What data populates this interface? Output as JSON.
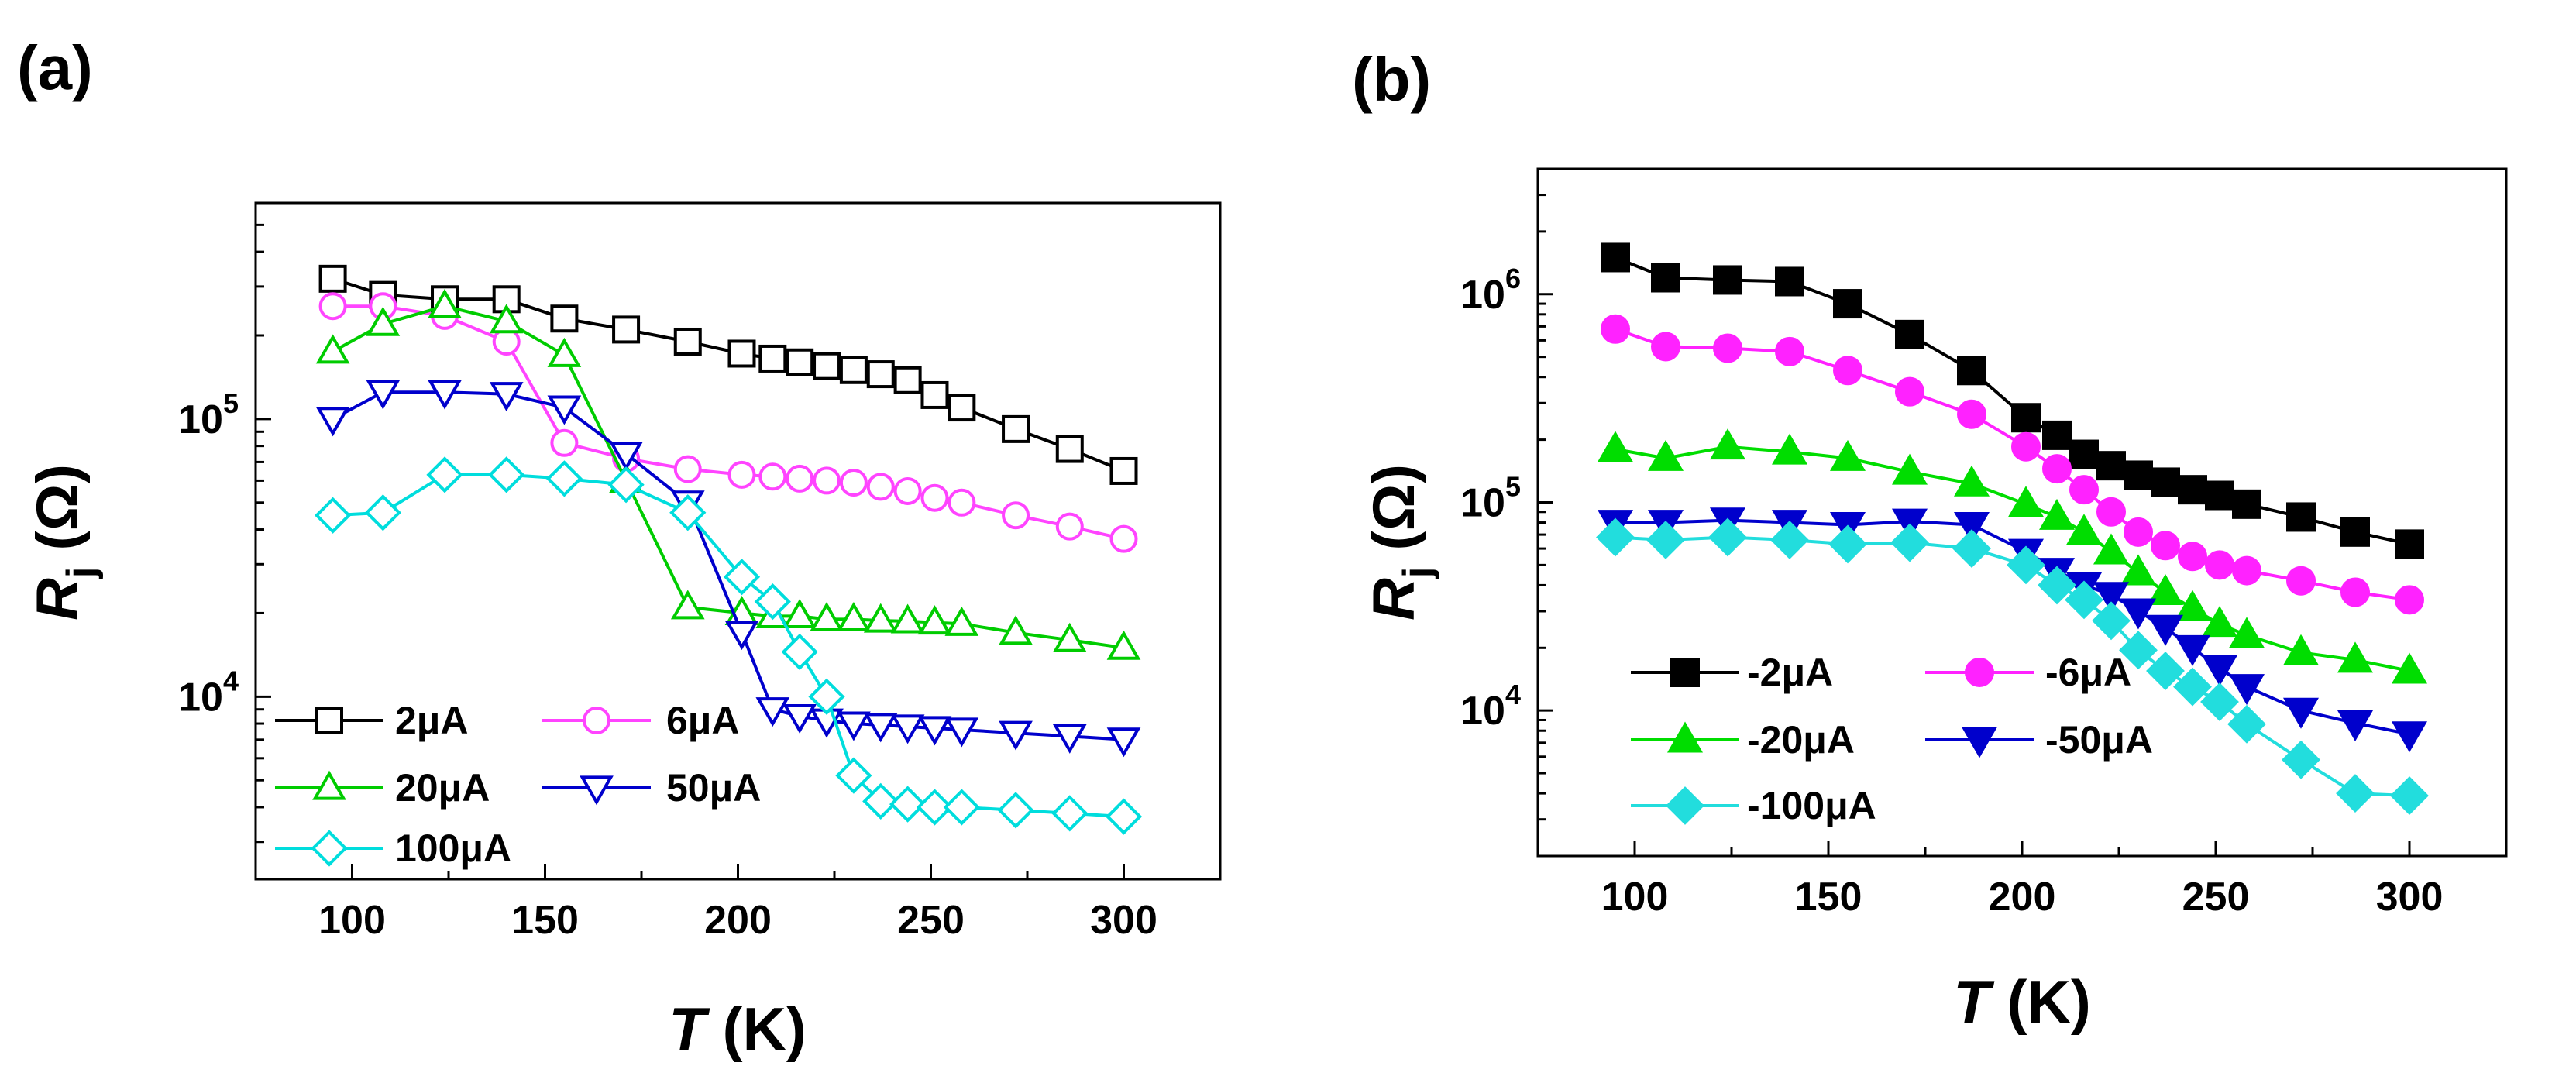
{
  "chart_data": [
    {
      "panel_label": "(a)",
      "type": "line",
      "title": "",
      "xlabel": "T (K)",
      "ylabel": "Rj (Ω)",
      "xlabel_parts": {
        "symbol": "T",
        "unit": " (K)"
      },
      "ylabel_parts": {
        "symbol": "R",
        "subscript": "j",
        "unit": " (Ω)"
      },
      "xlim": [
        75,
        325
      ],
      "ylim": [
        2200,
        600000
      ],
      "yscale": "log",
      "xticks": [
        100,
        150,
        200,
        250,
        300
      ],
      "xtick_labels": [
        "100",
        "150",
        "200",
        "250",
        "300"
      ],
      "yticks": [
        10000,
        100000
      ],
      "ytick_labels": [
        {
          "base": "10",
          "exp": "4"
        },
        {
          "base": "10",
          "exp": "5"
        }
      ],
      "grid": false,
      "legend_position": "bottom-left",
      "marker_fill": "hollow",
      "series": [
        {
          "name": "2μA",
          "color": "#000000",
          "marker": "square",
          "x": [
            95,
            108,
            124,
            140,
            155,
            171,
            187,
            201,
            209,
            216,
            223,
            230,
            237,
            244,
            251,
            258,
            272,
            286,
            300
          ],
          "y": [
            320000,
            280000,
            270000,
            270000,
            230000,
            210000,
            190000,
            172000,
            165000,
            160000,
            155000,
            150000,
            145000,
            138000,
            122000,
            110000,
            92000,
            78000,
            65000
          ]
        },
        {
          "name": "6μA",
          "color": "#ff44ff",
          "marker": "circle",
          "x": [
            95,
            108,
            124,
            140,
            155,
            171,
            187,
            201,
            209,
            216,
            223,
            230,
            237,
            244,
            251,
            258,
            272,
            286,
            300
          ],
          "y": [
            255000,
            255000,
            235000,
            190000,
            82000,
            72000,
            66000,
            63000,
            62000,
            61000,
            60000,
            59000,
            57000,
            55000,
            52000,
            50000,
            45000,
            41000,
            37000
          ]
        },
        {
          "name": "20μA",
          "color": "#00cc00",
          "marker": "triangle-up",
          "x": [
            95,
            108,
            124,
            140,
            155,
            171,
            187,
            201,
            209,
            216,
            223,
            230,
            237,
            244,
            251,
            258,
            272,
            286,
            300
          ],
          "y": [
            175000,
            220000,
            255000,
            225000,
            170000,
            60000,
            21000,
            20000,
            19500,
            19500,
            19000,
            19000,
            18800,
            18700,
            18500,
            18300,
            17000,
            16000,
            15000
          ]
        },
        {
          "name": "50μA",
          "color": "#0000cc",
          "marker": "triangle-down",
          "x": [
            95,
            108,
            124,
            140,
            155,
            171,
            187,
            201,
            209,
            216,
            223,
            230,
            237,
            244,
            251,
            258,
            272,
            286,
            300
          ],
          "y": [
            100000,
            125000,
            125000,
            123000,
            110000,
            75000,
            50000,
            17000,
            9000,
            8500,
            8200,
            8000,
            7900,
            7800,
            7700,
            7600,
            7400,
            7200,
            7000
          ]
        },
        {
          "name": "100μA",
          "color": "#00dddd",
          "marker": "diamond",
          "x": [
            95,
            108,
            124,
            140,
            155,
            171,
            187,
            201,
            209,
            216,
            223,
            230,
            237,
            244,
            251,
            258,
            272,
            286,
            300
          ],
          "y": [
            45000,
            46000,
            63000,
            63000,
            61000,
            58000,
            46000,
            27000,
            22000,
            14500,
            10000,
            5200,
            4200,
            4100,
            4000,
            4000,
            3900,
            3800,
            3700
          ]
        }
      ]
    },
    {
      "panel_label": "(b)",
      "type": "line",
      "title": "",
      "xlabel": "T (K)",
      "ylabel": "Rj (Ω)",
      "xlabel_parts": {
        "symbol": "T",
        "unit": " (K)"
      },
      "ylabel_parts": {
        "symbol": "R",
        "subscript": "j",
        "unit": " (Ω)"
      },
      "xlim": [
        75,
        325
      ],
      "ylim": [
        2000,
        4000000
      ],
      "yscale": "log",
      "xticks": [
        100,
        150,
        200,
        250,
        300
      ],
      "xtick_labels": [
        "100",
        "150",
        "200",
        "250",
        "300"
      ],
      "yticks": [
        10000,
        100000,
        1000000
      ],
      "ytick_labels": [
        {
          "base": "10",
          "exp": "4"
        },
        {
          "base": "10",
          "exp": "5"
        },
        {
          "base": "10",
          "exp": "6"
        }
      ],
      "grid": false,
      "legend_position": "bottom-left",
      "marker_fill": "solid",
      "series": [
        {
          "name": "-2μA",
          "color": "#000000",
          "marker": "square",
          "x": [
            95,
            108,
            124,
            140,
            155,
            171,
            187,
            201,
            209,
            216,
            223,
            230,
            237,
            244,
            251,
            258,
            272,
            286,
            300
          ],
          "y": [
            1500000,
            1200000,
            1170000,
            1150000,
            900000,
            640000,
            430000,
            255000,
            210000,
            170000,
            150000,
            135000,
            125000,
            115000,
            108000,
            98000,
            85000,
            72000,
            63000
          ]
        },
        {
          "name": "-6μA",
          "color": "#ff22ff",
          "marker": "circle",
          "x": [
            95,
            108,
            124,
            140,
            155,
            171,
            187,
            201,
            209,
            216,
            223,
            230,
            237,
            244,
            251,
            258,
            272,
            286,
            300
          ],
          "y": [
            680000,
            560000,
            550000,
            530000,
            430000,
            340000,
            265000,
            185000,
            145000,
            115000,
            90000,
            72000,
            62000,
            55000,
            50000,
            47000,
            42000,
            37000,
            34000
          ]
        },
        {
          "name": "-20μA",
          "color": "#00dd00",
          "marker": "triangle-up",
          "x": [
            95,
            108,
            124,
            140,
            155,
            171,
            187,
            201,
            209,
            216,
            223,
            230,
            237,
            244,
            251,
            258,
            272,
            286,
            300
          ],
          "y": [
            180000,
            163000,
            185000,
            175000,
            163000,
            140000,
            123000,
            98000,
            85000,
            72000,
            58000,
            46000,
            37000,
            31000,
            26000,
            23000,
            19000,
            17500,
            15500
          ]
        },
        {
          "name": "-50μA",
          "color": "#0000cc",
          "marker": "triangle-down",
          "x": [
            95,
            108,
            124,
            140,
            155,
            171,
            187,
            201,
            209,
            216,
            223,
            230,
            237,
            244,
            251,
            258,
            272,
            286,
            300
          ],
          "y": [
            80000,
            80000,
            82000,
            80000,
            78000,
            81000,
            78000,
            58000,
            47000,
            40000,
            36000,
            30000,
            25000,
            20000,
            16000,
            13000,
            10000,
            8700,
            7700
          ]
        },
        {
          "name": "-100μA",
          "color": "#22dddd",
          "marker": "diamond",
          "x": [
            95,
            108,
            124,
            140,
            155,
            171,
            187,
            201,
            209,
            216,
            223,
            230,
            237,
            244,
            251,
            258,
            272,
            286,
            300
          ],
          "y": [
            68000,
            66000,
            68000,
            66000,
            63000,
            64000,
            60000,
            50000,
            40000,
            34000,
            27000,
            19500,
            15500,
            13000,
            11000,
            8600,
            5800,
            4000,
            3900
          ]
        }
      ]
    }
  ]
}
